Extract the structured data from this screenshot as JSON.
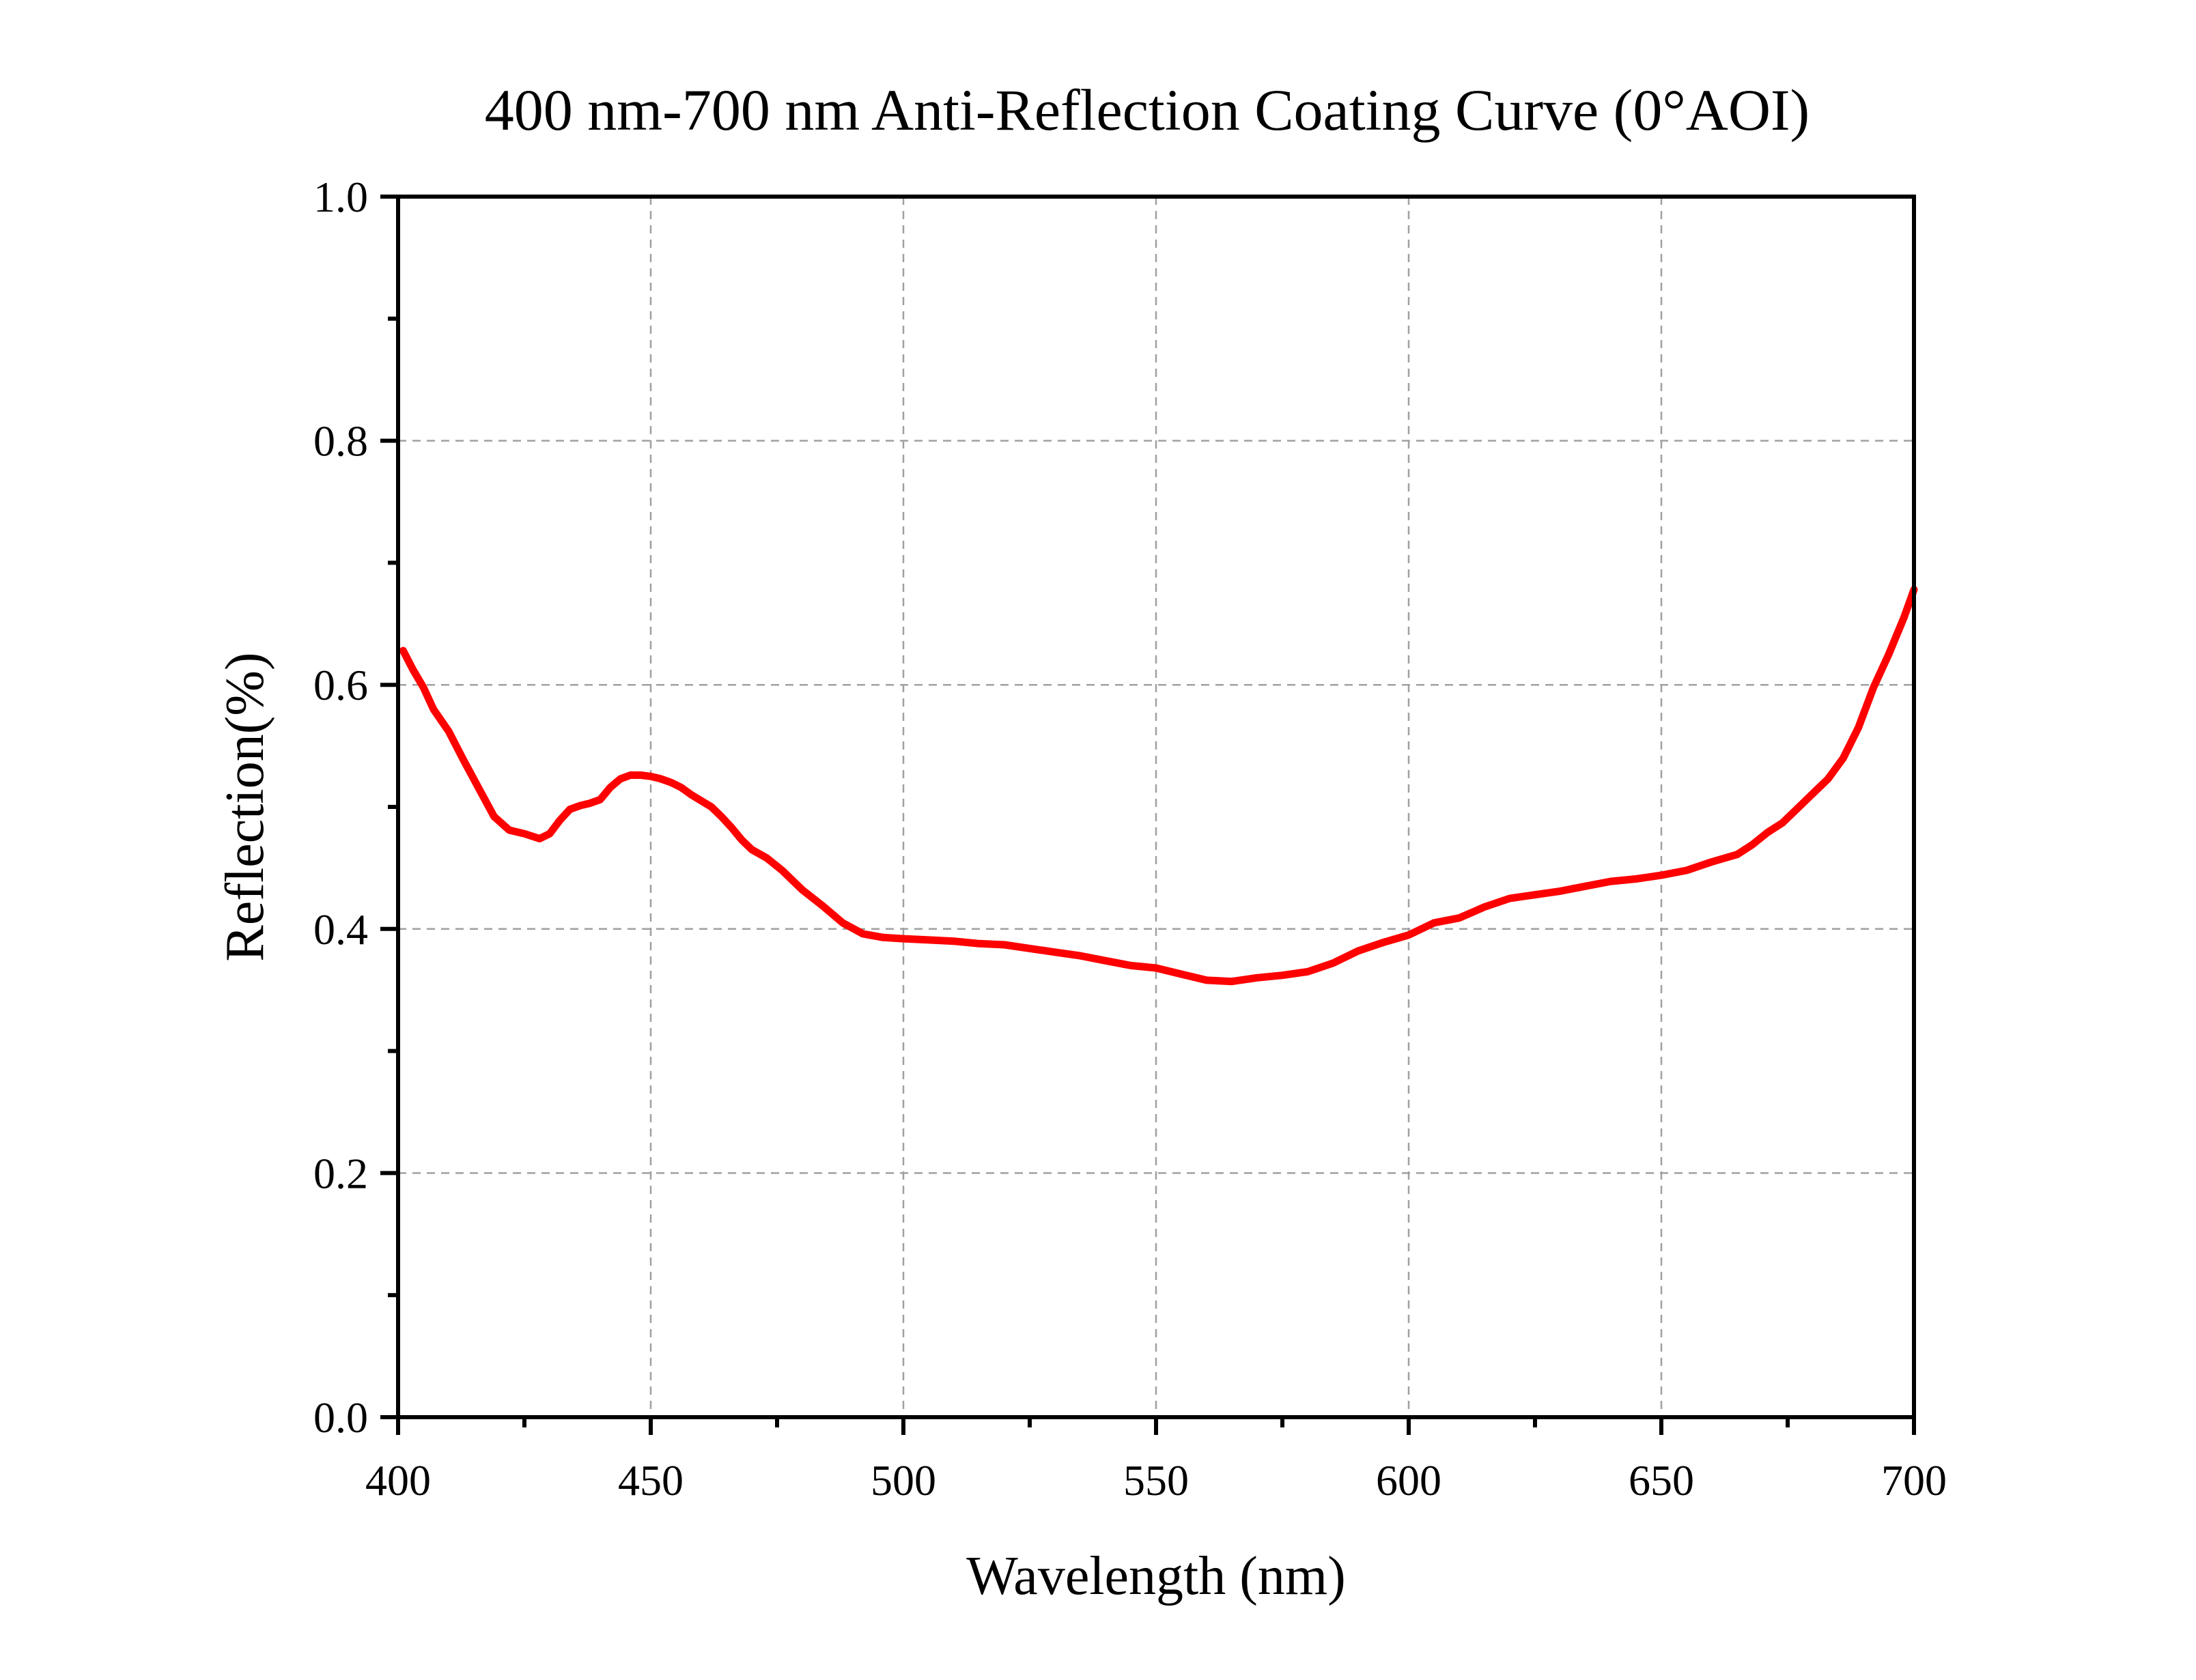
{
  "chart_data": {
    "type": "line",
    "title": "400 nm-700 nm Anti-Reflection Coating Curve (0°AOI)",
    "xlabel": "Wavelength (nm)",
    "ylabel": "Reflection(%)",
    "xlim": [
      400,
      700
    ],
    "ylim": [
      0.0,
      1.0
    ],
    "x_ticks": [
      400,
      450,
      500,
      550,
      600,
      650,
      700
    ],
    "x_tick_labels": [
      "400",
      "450",
      "500",
      "550",
      "600",
      "650",
      "700"
    ],
    "x_minor_step": 25,
    "y_ticks": [
      0.0,
      0.2,
      0.4,
      0.6,
      0.8,
      1.0
    ],
    "y_tick_labels": [
      "0.0",
      "0.2",
      "0.4",
      "0.6",
      "0.8",
      "1.0"
    ],
    "y_minor_step": 0.1,
    "grid": true,
    "legend": "none",
    "series": [
      {
        "color": "#ff0000",
        "x": [
          401,
          403,
          405,
          407,
          410,
          413,
          416,
          419,
          422,
          425,
          428,
          430,
          432,
          434,
          436,
          438,
          440,
          442,
          444,
          446,
          448,
          450,
          452,
          454,
          456,
          458,
          460,
          462,
          464,
          466,
          468,
          470,
          473,
          476,
          480,
          484,
          488,
          492,
          496,
          500,
          505,
          510,
          515,
          520,
          525,
          530,
          535,
          540,
          545,
          550,
          555,
          560,
          565,
          570,
          575,
          580,
          585,
          590,
          595,
          600,
          605,
          610,
          615,
          620,
          625,
          630,
          635,
          640,
          645,
          650,
          655,
          660,
          665,
          668,
          671,
          674,
          677,
          680,
          683,
          686,
          689,
          692,
          695,
          698,
          700
        ],
        "y": [
          0.628,
          0.612,
          0.598,
          0.58,
          0.562,
          0.538,
          0.515,
          0.492,
          0.481,
          0.478,
          0.474,
          0.478,
          0.489,
          0.498,
          0.501,
          0.503,
          0.506,
          0.516,
          0.523,
          0.526,
          0.526,
          0.525,
          0.523,
          0.52,
          0.516,
          0.51,
          0.505,
          0.5,
          0.492,
          0.483,
          0.473,
          0.465,
          0.458,
          0.448,
          0.432,
          0.419,
          0.405,
          0.396,
          0.393,
          0.392,
          0.391,
          0.39,
          0.388,
          0.387,
          0.384,
          0.381,
          0.378,
          0.374,
          0.37,
          0.368,
          0.363,
          0.358,
          0.357,
          0.36,
          0.362,
          0.365,
          0.372,
          0.382,
          0.389,
          0.395,
          0.405,
          0.409,
          0.418,
          0.425,
          0.428,
          0.431,
          0.435,
          0.439,
          0.441,
          0.444,
          0.448,
          0.455,
          0.461,
          0.469,
          0.479,
          0.487,
          0.499,
          0.511,
          0.523,
          0.54,
          0.565,
          0.598,
          0.625,
          0.655,
          0.678
        ]
      }
    ]
  }
}
